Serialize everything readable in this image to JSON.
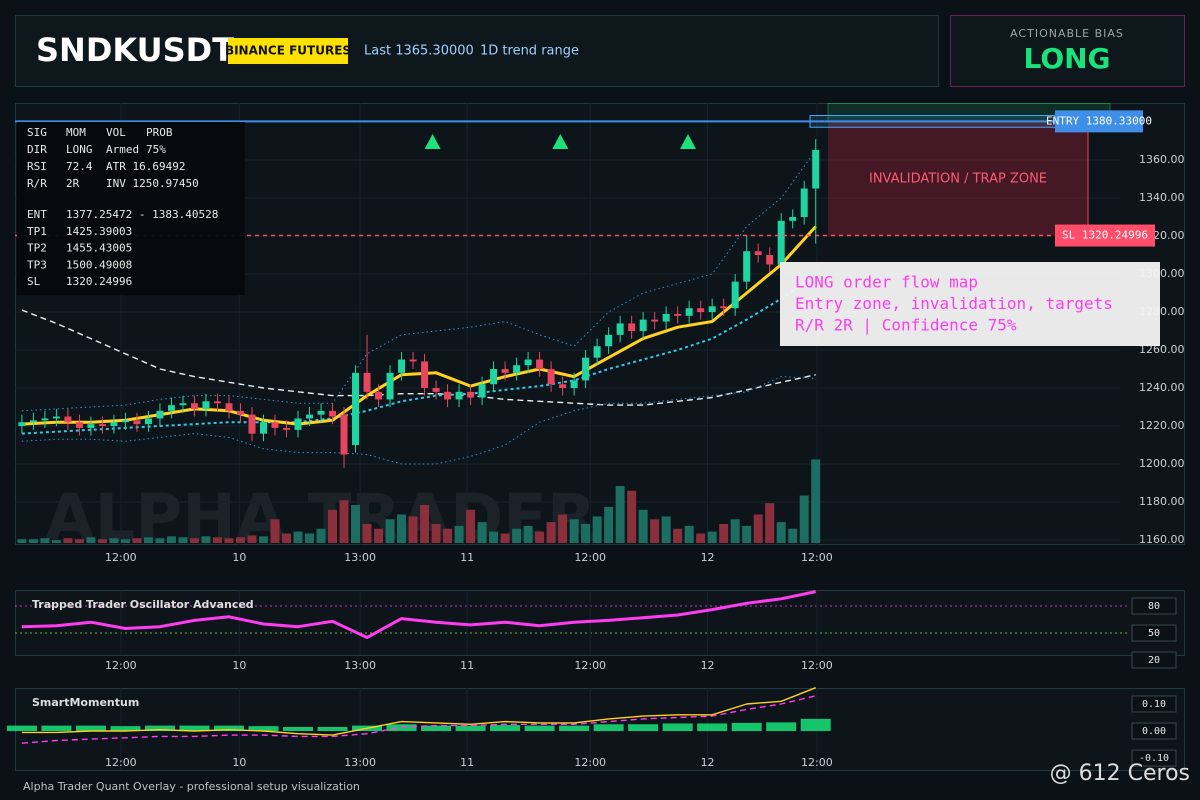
{
  "header": {
    "title": "SNDKUSDT",
    "badge": "BINANCE FUTURES",
    "last": "Last 1365.30000",
    "range": "1D trend range"
  },
  "bias": {
    "label": "ACTIONABLE BIAS",
    "value": "LONG"
  },
  "info": {
    "rows": [
      [
        "SIG",
        "MOM",
        "VOL",
        "PROB"
      ],
      [
        "DIR",
        "LONG",
        "Armed",
        "75%"
      ],
      [
        "RSI",
        "72.4",
        "ATR 16.69492"
      ],
      [
        "R/R",
        "2R",
        "INV 1250.97450"
      ]
    ],
    "levels": [
      [
        "ENT",
        "1377.25472 - 1383.40528"
      ],
      [
        "TP1",
        "1425.39003"
      ],
      [
        "TP2",
        "1455.43005"
      ],
      [
        "TP3",
        "1500.49008"
      ],
      [
        "SL",
        "1320.24996"
      ]
    ]
  },
  "annotation": {
    "lines": [
      "LONG order flow map",
      "Entry zone, invalidation, targets",
      "R/R 2R | Confidence 75%"
    ]
  },
  "zone_label": "INVALIDATION / TRAP ZONE",
  "watermark": "ALPHA TRADER",
  "footer": "Alpha Trader Quant Overlay - professional setup visualization",
  "credit": "@ 612 Ceros",
  "chart_data": [
    {
      "type": "candlestick",
      "x": [
        0,
        1,
        2,
        3,
        4,
        5,
        6,
        7,
        8,
        9,
        10,
        11,
        12,
        13,
        14,
        15,
        16,
        17,
        18,
        19,
        20,
        21,
        22,
        23,
        24,
        25,
        26,
        27,
        28,
        29,
        30,
        31,
        32,
        33,
        34,
        35,
        36,
        37,
        38,
        39,
        40,
        41,
        42,
        43,
        44,
        45,
        46,
        47,
        48,
        49,
        50,
        51,
        52,
        53,
        54,
        55,
        56,
        57,
        58,
        59,
        60,
        61,
        62,
        63,
        64,
        65,
        66,
        67,
        68,
        69
      ],
      "open": [
        1220,
        1222,
        1223,
        1224,
        1225,
        1222,
        1219,
        1221,
        1220,
        1222,
        1223,
        1221,
        1224,
        1228,
        1231,
        1232,
        1229,
        1233,
        1232,
        1228,
        1226,
        1216,
        1222,
        1219,
        1218,
        1224,
        1226,
        1228,
        1226,
        1210,
        1248,
        1238,
        1234,
        1248,
        1255,
        1254,
        1240,
        1238,
        1234,
        1238,
        1235,
        1242,
        1250,
        1248,
        1252,
        1255,
        1250,
        1242,
        1240,
        1244,
        1256,
        1262,
        1268,
        1274,
        1270,
        1276,
        1275,
        1279,
        1278,
        1282,
        1280,
        1283,
        1282,
        1296,
        1312,
        1310,
        1305,
        1328,
        1330,
        1345
      ],
      "high": [
        1226,
        1227,
        1228,
        1229,
        1229,
        1226,
        1225,
        1225,
        1226,
        1227,
        1227,
        1228,
        1232,
        1235,
        1236,
        1236,
        1237,
        1237,
        1236,
        1232,
        1230,
        1226,
        1226,
        1223,
        1228,
        1230,
        1232,
        1232,
        1230,
        1252,
        1268,
        1242,
        1252,
        1259,
        1259,
        1258,
        1244,
        1242,
        1242,
        1242,
        1246,
        1254,
        1254,
        1256,
        1259,
        1259,
        1254,
        1246,
        1248,
        1260,
        1266,
        1272,
        1278,
        1278,
        1280,
        1280,
        1283,
        1283,
        1286,
        1286,
        1287,
        1287,
        1300,
        1320,
        1316,
        1314,
        1332,
        1334,
        1349,
        1371
      ],
      "low": [
        1216,
        1218,
        1219,
        1220,
        1218,
        1215,
        1215,
        1216,
        1216,
        1218,
        1217,
        1217,
        1220,
        1224,
        1227,
        1225,
        1225,
        1228,
        1224,
        1222,
        1212,
        1212,
        1215,
        1214,
        1214,
        1220,
        1222,
        1221,
        1198,
        1206,
        1234,
        1230,
        1230,
        1244,
        1250,
        1236,
        1234,
        1230,
        1230,
        1231,
        1231,
        1238,
        1244,
        1244,
        1248,
        1246,
        1238,
        1236,
        1236,
        1240,
        1252,
        1258,
        1264,
        1266,
        1266,
        1271,
        1271,
        1274,
        1274,
        1276,
        1276,
        1278,
        1278,
        1292,
        1306,
        1301,
        1301,
        1324,
        1326,
        1316
      ],
      "close": [
        1222,
        1223,
        1224,
        1225,
        1222,
        1219,
        1221,
        1220,
        1222,
        1223,
        1221,
        1224,
        1228,
        1231,
        1232,
        1229,
        1233,
        1232,
        1228,
        1226,
        1216,
        1222,
        1219,
        1218,
        1224,
        1226,
        1228,
        1225,
        1205,
        1248,
        1238,
        1234,
        1248,
        1255,
        1254,
        1240,
        1238,
        1234,
        1238,
        1235,
        1242,
        1250,
        1248,
        1252,
        1255,
        1250,
        1242,
        1240,
        1244,
        1256,
        1262,
        1268,
        1274,
        1270,
        1276,
        1275,
        1279,
        1278,
        1282,
        1280,
        1283,
        1282,
        1296,
        1312,
        1310,
        1305,
        1328,
        1330,
        1345,
        1365.3
      ],
      "volume": [
        4,
        4,
        5,
        3,
        5,
        4,
        6,
        4,
        5,
        4,
        5,
        6,
        5,
        7,
        6,
        5,
        7,
        6,
        5,
        6,
        8,
        7,
        25,
        10,
        12,
        10,
        15,
        35,
        45,
        40,
        20,
        15,
        25,
        30,
        28,
        40,
        20,
        15,
        18,
        35,
        22,
        12,
        10,
        15,
        18,
        12,
        22,
        30,
        25,
        20,
        28,
        38,
        60,
        55,
        35,
        25,
        28,
        15,
        18,
        10,
        12,
        20,
        25,
        18,
        30,
        42,
        22,
        15,
        50,
        88
      ],
      "up_color": "#1fd6a2",
      "down_color": "#e8455e",
      "volume_up_color": "#1d6e62",
      "volume_down_color": "#8c2f3d",
      "xlim": [
        -0.6,
        101.1
      ],
      "ylim": [
        1157.4,
        1390
      ],
      "yticks": [
        {
          "value": 1160,
          "label": "1160.00"
        },
        {
          "value": 1180,
          "label": "1180.00"
        },
        {
          "value": 1200,
          "label": "1200.00"
        },
        {
          "value": 1220,
          "label": "1220.00"
        },
        {
          "value": 1240,
          "label": "1240.00"
        },
        {
          "value": 1260,
          "label": "1260.00"
        },
        {
          "value": 1280,
          "label": "1280.00"
        },
        {
          "value": 1300,
          "label": "1300.00"
        },
        {
          "value": 1320,
          "label": "1320.00"
        },
        {
          "value": 1340,
          "label": "1340.00"
        },
        {
          "value": 1360,
          "label": "1360.00"
        }
      ],
      "xticks": [
        {
          "value": 8.6,
          "label": "12:00"
        },
        {
          "value": 18.9,
          "label": "10"
        },
        {
          "value": 29.4,
          "label": "13:00"
        },
        {
          "value": 38.7,
          "label": "11"
        },
        {
          "value": 49.4,
          "label": "12:00"
        },
        {
          "value": 59.6,
          "label": "12"
        },
        {
          "value": 69.1,
          "label": "12:00"
        }
      ],
      "overlays": {
        "x": [
          0,
          3,
          6,
          9,
          12,
          15,
          18,
          21,
          24,
          27,
          30,
          33,
          36,
          39,
          42,
          45,
          48,
          51,
          54,
          57,
          60,
          63,
          66,
          69
        ],
        "series": [
          {
            "color": "#e8eef2",
            "style": "dashed",
            "values": [
              1281,
              1274,
              1266,
              1258,
              1250,
              1246,
              1243,
              1240,
              1238,
              1236,
              1236,
              1237,
              1237,
              1236,
              1234,
              1233,
              1232,
              1231,
              1231,
              1233,
              1235,
              1239,
              1243,
              1247
            ]
          },
          {
            "color": "#3f8fd8",
            "style": "dotted",
            "values": [
              1228,
              1229,
              1230,
              1231,
              1234,
              1236,
              1236,
              1234,
              1232,
              1232,
              1258,
              1268,
              1270,
              1272,
              1275,
              1268,
              1262,
              1280,
              1290,
              1295,
              1300,
              1325,
              1340,
              1365
            ]
          },
          {
            "color": "#3f8fd8",
            "style": "dotted",
            "values": [
              1212,
              1213,
              1213,
              1212,
              1214,
              1216,
              1214,
              1208,
              1206,
              1206,
              1205,
              1200,
              1200,
              1204,
              1210,
              1222,
              1228,
              1232,
              1232,
              1234,
              1236,
              1238,
              1246,
              1245
            ]
          },
          {
            "color": "#36c6e8",
            "style": "dotted-thick",
            "values": [
              1216,
              1217,
              1218,
              1219,
              1220,
              1221,
              1222,
              1222,
              1222,
              1224,
              1228,
              1233,
              1236,
              1237,
              1239,
              1241,
              1244,
              1250,
              1255,
              1260,
              1266,
              1276,
              1287,
              1300
            ]
          },
          {
            "color": "#ffd21f",
            "style": "solid",
            "values": [
              1221,
              1222,
              1222,
              1223,
              1226,
              1229,
              1228,
              1223,
              1221,
              1223,
              1236,
              1247,
              1248,
              1241,
              1246,
              1250,
              1246,
              1256,
              1266,
              1272,
              1275,
              1290,
              1305,
              1325
            ]
          }
        ]
      },
      "signal_x": [
        35.7,
        46.8,
        57.9
      ],
      "signal_color": "#19e37a",
      "entry": {
        "value": 1380.33,
        "label": "ENTRY 1380.33000"
      },
      "entry_zone": [
        1377.25472,
        1383.40528
      ],
      "stop": {
        "value": 1320.24996,
        "label": "SL 1320.24996"
      }
    },
    {
      "type": "line",
      "title": "Trapped Trader Oscillator Advanced",
      "x": [
        0,
        3,
        6,
        9,
        12,
        15,
        18,
        21,
        24,
        27,
        30,
        33,
        36,
        39,
        42,
        45,
        48,
        51,
        54,
        57,
        60,
        63,
        66,
        69
      ],
      "series": [
        {
          "color": "#ff3df0",
          "values": [
            57,
            58,
            62,
            55,
            57,
            64,
            68,
            60,
            57,
            63,
            45,
            66,
            62,
            59,
            62,
            58,
            62,
            64,
            67,
            70,
            76,
            83,
            88,
            96
          ]
        }
      ],
      "levels": [
        {
          "value": 80,
          "color": "#ff3df0"
        },
        {
          "value": 50,
          "color": "#7ddc4a"
        }
      ],
      "xlim": [
        -0.6,
        101.1
      ],
      "ylim": [
        18.9,
        97.8
      ],
      "yticks": [
        20,
        50,
        80
      ]
    },
    {
      "type": "momentum",
      "title": "SmartMomentum",
      "x": [
        0,
        3,
        6,
        9,
        12,
        15,
        18,
        21,
        24,
        27,
        30,
        33,
        36,
        39,
        42,
        45,
        48,
        51,
        54,
        57,
        60,
        63,
        66,
        69
      ],
      "bars": {
        "color": "#19e37a",
        "values": [
          0.02,
          0.02,
          0.02,
          0.018,
          0.02,
          0.02,
          0.02,
          0.018,
          0.015,
          0.015,
          0.02,
          0.025,
          0.02,
          0.02,
          0.022,
          0.02,
          0.02,
          0.025,
          0.025,
          0.028,
          0.028,
          0.03,
          0.032,
          0.045
        ]
      },
      "series": [
        {
          "color": "#ffd21f",
          "style": "solid",
          "values": [
            -0.005,
            -0.005,
            0,
            0,
            0.005,
            0,
            0.005,
            0,
            -0.01,
            -0.015,
            0.01,
            0.035,
            0.03,
            0.025,
            0.035,
            0.03,
            0.03,
            0.045,
            0.055,
            0.06,
            0.06,
            0.1,
            0.11,
            0.16
          ]
        },
        {
          "color": "#ff3df0",
          "style": "dashed",
          "values": [
            -0.045,
            -0.035,
            -0.03,
            -0.025,
            -0.02,
            -0.02,
            -0.015,
            -0.015,
            -0.02,
            -0.02,
            -0.01,
            0.015,
            0.02,
            0.02,
            0.025,
            0.025,
            0.025,
            0.035,
            0.045,
            0.05,
            0.055,
            0.08,
            0.1,
            0.13
          ]
        }
      ],
      "xlim": [
        -0.6,
        101.1
      ],
      "ylim": [
        -0.144,
        0.159
      ],
      "yticks": [
        {
          "value": 0.1,
          "label": "0.10"
        },
        {
          "value": 0,
          "label": "0.00"
        },
        {
          "value": -0.1,
          "label": "-0.10"
        }
      ]
    }
  ]
}
